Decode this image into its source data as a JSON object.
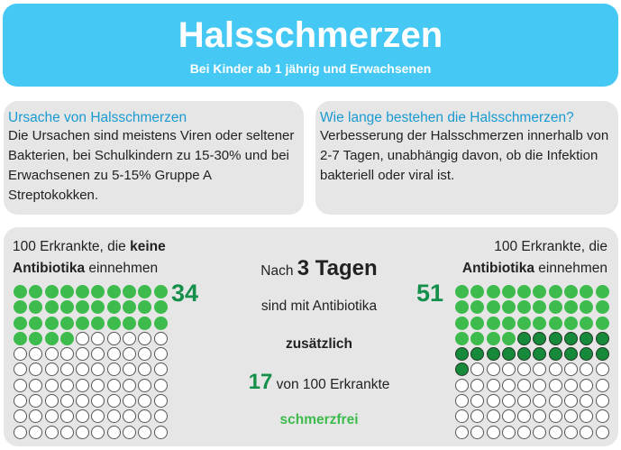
{
  "header": {
    "title": "Halsschmerzen",
    "subtitle": "Bei Kinder ab 1 jährig und Erwachsenen"
  },
  "cause": {
    "title": "Ursache von Halsschmerzen",
    "text": "Die Ursachen sind meistens Viren oder seltener Bakterien, bei Schulkindern zu 15-30% und bei Erwachsenen zu 5-15% Gruppe A Streptokokken."
  },
  "duration": {
    "title": "Wie lange bestehen die Halsschmerzen?",
    "text": "Verbesserung der Halsschmerzen innerhalb von 2-7 Tagen, unabhängig davon, ob die Infektion bakteriell oder viral ist."
  },
  "left": {
    "l1": "100 Erkrankte, die ",
    "l1b": "keine",
    "l2b": "Antibiotika",
    "l2": " einnehmen",
    "count": "34",
    "filled": 34,
    "extra": 0
  },
  "right": {
    "l1": "100 Erkrankte, die",
    "l2b": "Antibiotika",
    "l2": " einnehmen",
    "count": "51",
    "filled": 34,
    "extra": 17
  },
  "middle": {
    "a": "Nach ",
    "b": "3 Tagen",
    "c": "sind mit Antibiotika",
    "d": "zusätzlich",
    "e": "17",
    "f": " von 100 Erkrankte",
    "g": "schmerzfrei"
  },
  "colors": {
    "blue": "#45c8f3",
    "green": "#3dbb4c",
    "dark_green": "#16893a"
  }
}
